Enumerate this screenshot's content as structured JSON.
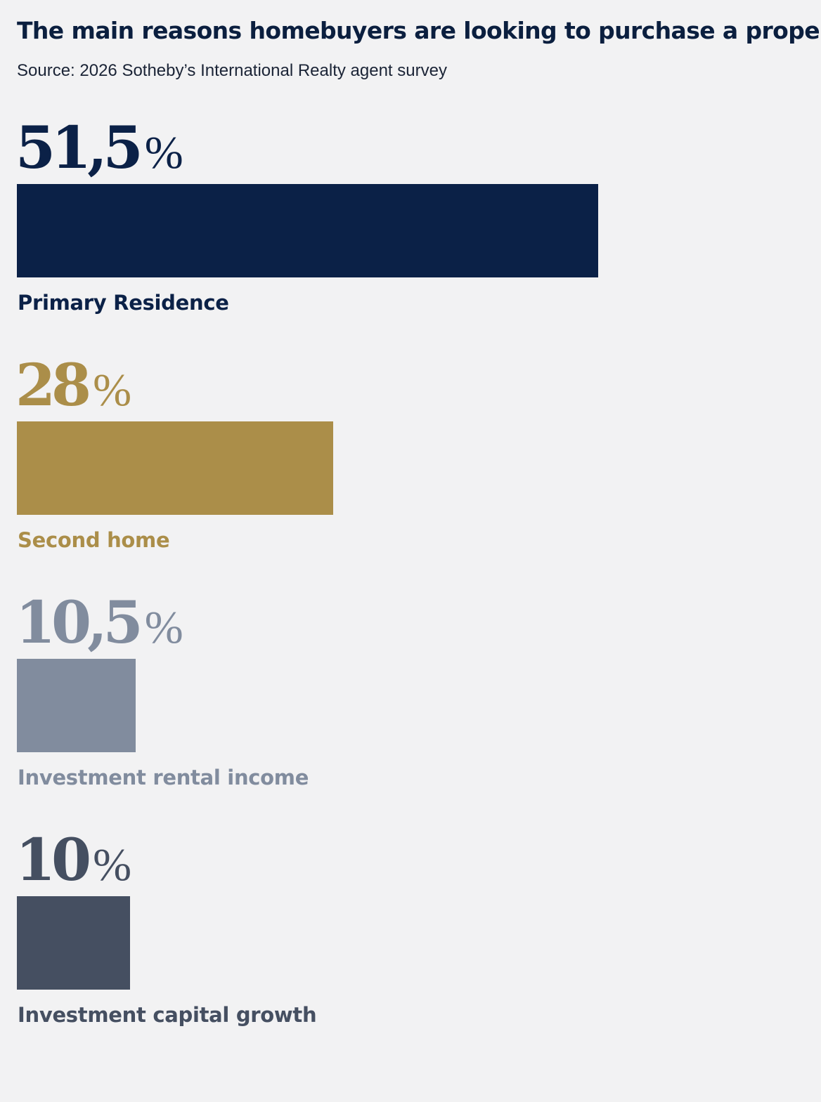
{
  "header": {
    "title": "The main reasons homebuyers are looking to purchase a property",
    "subtitle": "Source: 2026 Sotheby’s International Realty agent survey"
  },
  "chart_data": {
    "type": "bar",
    "orientation": "horizontal",
    "categories": [
      "Primary Residence",
      "Second home",
      "Investment rental income",
      "Investment capital growth"
    ],
    "values": [
      51.5,
      28,
      10.5,
      10
    ],
    "value_labels": [
      "51,5",
      "28",
      "10,5",
      "10"
    ],
    "unit": "%",
    "colors": [
      "#0b2147",
      "#ab8e49",
      "#818c9e",
      "#454f61"
    ],
    "xlim": [
      0,
      100
    ],
    "grid": false,
    "legend": "none"
  }
}
